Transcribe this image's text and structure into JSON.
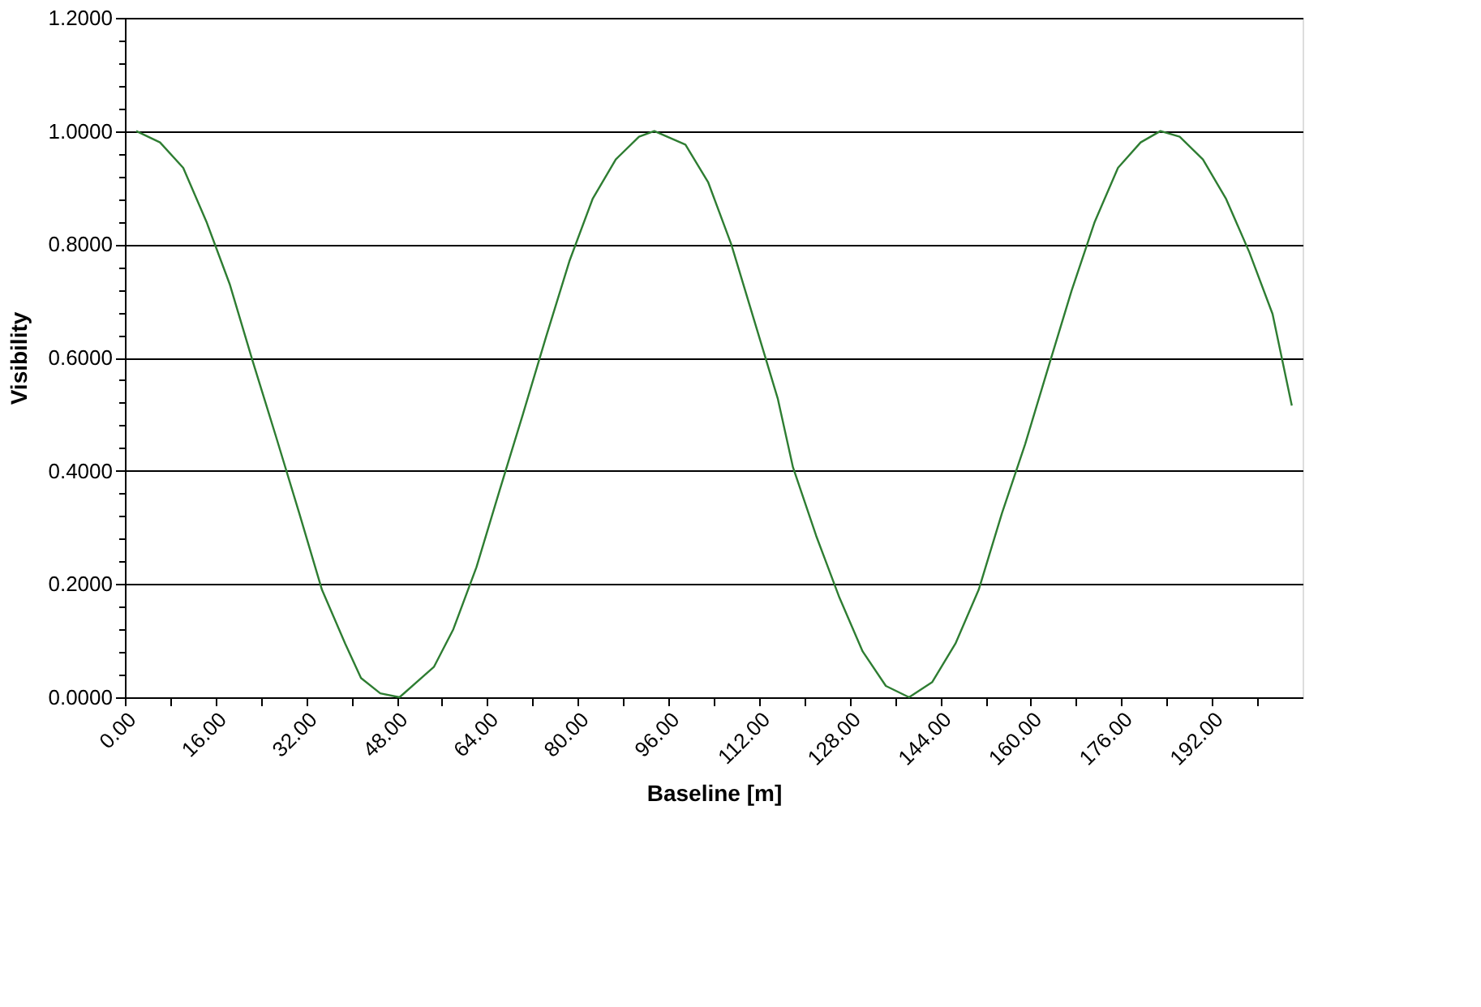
{
  "chart_data": {
    "type": "line",
    "xlabel": "Baseline [m]",
    "ylabel": "Visibility",
    "x": [
      2,
      6.2,
      10.3,
      14.4,
      18.5,
      22.5,
      26.7,
      30.8,
      34.8,
      38.9,
      41.7,
      45.1,
      48.5,
      54.6,
      58,
      62.1,
      66.2,
      70.3,
      74.4,
      78.5,
      82.6,
      86.7,
      90.8,
      93.5,
      99,
      103,
      107.1,
      111.2,
      115.3,
      118,
      122.1,
      126.2,
      130.3,
      134.4,
      138.5,
      142.6,
      146.7,
      150.8,
      154.9,
      159,
      163.1,
      167.2,
      171.3,
      175.4,
      179.4,
      182.9,
      186.3,
      190.4,
      194.5,
      198.6,
      202.7,
      206.1
    ],
    "series": [
      {
        "color": "#2e7d32",
        "values": [
          1.0,
          0.98,
          0.935,
          0.84,
          0.73,
          0.596,
          0.46,
          0.325,
          0.19,
          0.095,
          0.034,
          0.007,
          0.0,
          0.054,
          0.12,
          0.23,
          0.366,
          0.5,
          0.637,
          0.77,
          0.88,
          0.95,
          0.99,
          1.0,
          0.976,
          0.91,
          0.8,
          0.664,
          0.528,
          0.406,
          0.285,
          0.176,
          0.081,
          0.02,
          0.0,
          0.027,
          0.095,
          0.19,
          0.325,
          0.447,
          0.583,
          0.718,
          0.84,
          0.935,
          0.98,
          1.0,
          0.99,
          0.95,
          0.88,
          0.786,
          0.677,
          0.515
        ]
      }
    ],
    "xlim": [
      0,
      208
    ],
    "xticks": [
      {
        "value": 0,
        "label": "0.00"
      },
      {
        "value": 8,
        "label": null
      },
      {
        "value": 16,
        "label": "16.00"
      },
      {
        "value": 24,
        "label": null
      },
      {
        "value": 32,
        "label": "32.00"
      },
      {
        "value": 40,
        "label": null
      },
      {
        "value": 48,
        "label": "48.00"
      },
      {
        "value": 56,
        "label": null
      },
      {
        "value": 64,
        "label": "64.00"
      },
      {
        "value": 72,
        "label": null
      },
      {
        "value": 80,
        "label": "80.00"
      },
      {
        "value": 88,
        "label": null
      },
      {
        "value": 96,
        "label": "96.00"
      },
      {
        "value": 104,
        "label": null
      },
      {
        "value": 112,
        "label": "112.00"
      },
      {
        "value": 120,
        "label": null
      },
      {
        "value": 128,
        "label": "128.00"
      },
      {
        "value": 136,
        "label": null
      },
      {
        "value": 144,
        "label": "144.00"
      },
      {
        "value": 152,
        "label": null
      },
      {
        "value": 160,
        "label": "160.00"
      },
      {
        "value": 168,
        "label": null
      },
      {
        "value": 176,
        "label": "176.00"
      },
      {
        "value": 184,
        "label": null
      },
      {
        "value": 192,
        "label": "192.00"
      },
      {
        "value": 200,
        "label": null
      }
    ],
    "ylim": [
      0,
      1.2
    ],
    "yticks": [
      {
        "value": 0,
        "label": "0.0000"
      },
      {
        "value": 0.04,
        "label": null
      },
      {
        "value": 0.08,
        "label": null
      },
      {
        "value": 0.12,
        "label": null
      },
      {
        "value": 0.16,
        "label": null
      },
      {
        "value": 0.2,
        "label": "0.2000"
      },
      {
        "value": 0.24,
        "label": null
      },
      {
        "value": 0.28,
        "label": null
      },
      {
        "value": 0.32,
        "label": null
      },
      {
        "value": 0.36,
        "label": null
      },
      {
        "value": 0.4,
        "label": "0.4000"
      },
      {
        "value": 0.44,
        "label": null
      },
      {
        "value": 0.48,
        "label": null
      },
      {
        "value": 0.52,
        "label": null
      },
      {
        "value": 0.56,
        "label": null
      },
      {
        "value": 0.6,
        "label": "0.6000"
      },
      {
        "value": 0.64,
        "label": null
      },
      {
        "value": 0.68,
        "label": null
      },
      {
        "value": 0.72,
        "label": null
      },
      {
        "value": 0.76,
        "label": null
      },
      {
        "value": 0.8,
        "label": "0.8000"
      },
      {
        "value": 0.84,
        "label": null
      },
      {
        "value": 0.88,
        "label": null
      },
      {
        "value": 0.92,
        "label": null
      },
      {
        "value": 0.96,
        "label": null
      },
      {
        "value": 1.0,
        "label": "1.0000"
      },
      {
        "value": 1.04,
        "label": null
      },
      {
        "value": 1.08,
        "label": null
      },
      {
        "value": 1.12,
        "label": null
      },
      {
        "value": 1.16,
        "label": null
      },
      {
        "value": 1.2,
        "label": "1.2000"
      }
    ],
    "grid": "y",
    "marker": "none",
    "line_style": "solid"
  }
}
